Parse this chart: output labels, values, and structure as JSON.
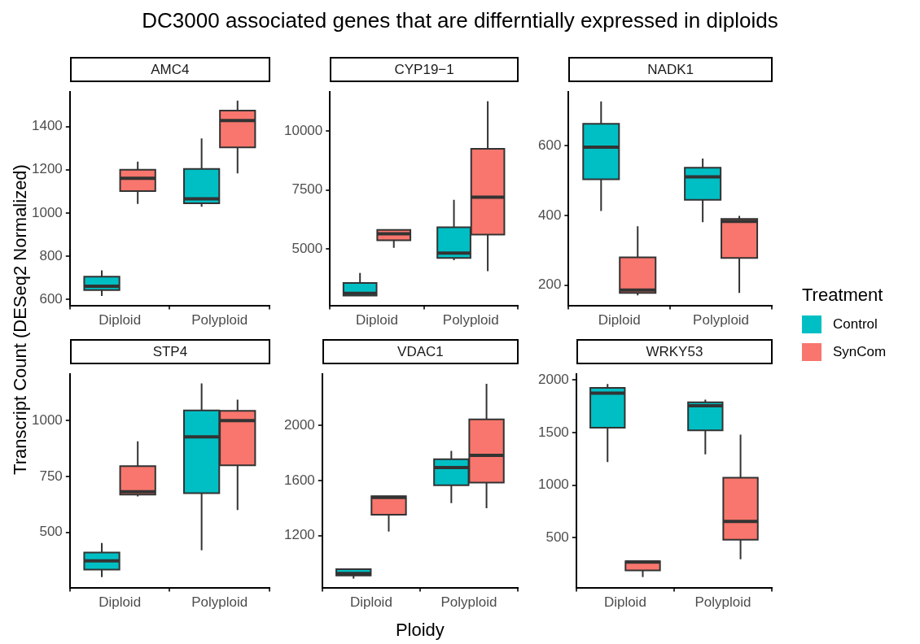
{
  "chart_data": [
    {
      "type": "box",
      "title": "AMC4",
      "annotations": [
        "DC3000 associated genes that are differntially expressed in diploids"
      ],
      "ylabel": "Transcript Count (DESeq2 Normalized)",
      "legend": "right",
      "legend_title": "Treatment",
      "categories": [
        "Diploid",
        "Polyploid"
      ],
      "ylim": [
        572,
        1560
      ],
      "yticks": [
        600,
        800,
        1000,
        1200,
        1400
      ],
      "series": [
        {
          "name": "Control",
          "color": "#00bfc4",
          "boxes": [
            {
              "low": 616,
              "q1": 643,
              "median": 661,
              "q3": 705,
              "high": 734
            },
            {
              "low": 1029,
              "q1": 1045,
              "median": 1066,
              "q3": 1204,
              "high": 1345
            }
          ]
        },
        {
          "name": "SynCom",
          "color": "#f8766d",
          "boxes": [
            {
              "low": 1042,
              "q1": 1101,
              "median": 1161,
              "q3": 1200,
              "high": 1238
            },
            {
              "low": 1183,
              "q1": 1304,
              "median": 1428,
              "q3": 1474,
              "high": 1520
            }
          ]
        }
      ]
    },
    {
      "type": "box",
      "title": "CYP19−1",
      "categories": [
        "Diploid",
        "Polyploid"
      ],
      "ylim": [
        2606,
        11644
      ],
      "yticks": [
        5000,
        7500,
        10000
      ],
      "series": [
        {
          "color": "#00bfc4",
          "boxes": [
            {
              "low": 3020,
              "q1": 3020,
              "median": 3121,
              "q3": 3557,
              "high": 3982
            },
            {
              "low": 4519,
              "q1": 4620,
              "median": 4821,
              "q3": 5917,
              "high": 7081
            }
          ]
        },
        {
          "color": "#f8766d",
          "boxes": [
            {
              "low": 5045,
              "q1": 5369,
              "median": 5637,
              "q3": 5805,
              "high": 5805
            },
            {
              "low": 4060,
              "q1": 5604,
              "median": 7193,
              "q3": 9239,
              "high": 11253
            }
          ]
        }
      ]
    },
    {
      "type": "box",
      "title": "NADK1",
      "categories": [
        "Diploid",
        "Polyploid"
      ],
      "ylim": [
        142,
        754
      ],
      "yticks": [
        200,
        400,
        600
      ],
      "series": [
        {
          "color": "#00bfc4",
          "boxes": [
            {
              "low": 413,
              "q1": 504,
              "median": 596,
              "q3": 663,
              "high": 727
            },
            {
              "low": 381,
              "q1": 445,
              "median": 511,
              "q3": 537,
              "high": 563
            }
          ]
        },
        {
          "color": "#f8766d",
          "boxes": [
            {
              "low": 171,
              "q1": 178,
              "median": 186,
              "q3": 280,
              "high": 369
            },
            {
              "low": 178,
              "q1": 278,
              "median": 383,
              "q3": 390,
              "high": 399
            }
          ]
        }
      ]
    },
    {
      "type": "box",
      "title": "STP4",
      "categories": [
        "Diploid",
        "Polyploid"
      ],
      "ylim": [
        253,
        1208
      ],
      "yticks": [
        500,
        750,
        1000
      ],
      "series": [
        {
          "color": "#00bfc4",
          "boxes": [
            {
              "low": 300,
              "q1": 333,
              "median": 373,
              "q3": 410,
              "high": 453
            },
            {
              "low": 420,
              "q1": 676,
              "median": 928,
              "q3": 1046,
              "high": 1167
            }
          ]
        },
        {
          "color": "#f8766d",
          "boxes": [
            {
              "low": 661,
              "q1": 669,
              "median": 682,
              "q3": 797,
              "high": 908
            },
            {
              "low": 600,
              "q1": 800,
              "median": 1000,
              "q3": 1044,
              "high": 1094
            }
          ]
        }
      ]
    },
    {
      "type": "box",
      "title": "VDAC1",
      "xlabel": "Ploidy",
      "categories": [
        "Diploid",
        "Polyploid"
      ],
      "ylim": [
        822,
        2372
      ],
      "yticks": [
        1200,
        1600,
        2000
      ],
      "series": [
        {
          "color": "#00bfc4",
          "boxes": [
            {
              "low": 887,
              "q1": 910,
              "median": 925,
              "q3": 956,
              "high": 956
            },
            {
              "low": 1436,
              "q1": 1566,
              "median": 1694,
              "q3": 1754,
              "high": 1815
            }
          ]
        },
        {
          "color": "#f8766d",
          "boxes": [
            {
              "low": 1229,
              "q1": 1351,
              "median": 1477,
              "q3": 1485,
              "high": 1485
            },
            {
              "low": 1398,
              "q1": 1585,
              "median": 1782,
              "q3": 2044,
              "high": 2302
            }
          ]
        }
      ]
    },
    {
      "type": "box",
      "title": "WRKY53",
      "categories": [
        "Diploid",
        "Polyploid"
      ],
      "ylim": [
        25,
        2055
      ],
      "yticks": [
        500,
        1000,
        1500,
        2000
      ],
      "series": [
        {
          "color": "#00bfc4",
          "boxes": [
            {
              "low": 1220,
              "q1": 1545,
              "median": 1875,
              "q3": 1925,
              "high": 1962
            },
            {
              "low": 1292,
              "q1": 1520,
              "median": 1755,
              "q3": 1787,
              "high": 1812
            }
          ]
        },
        {
          "color": "#f8766d",
          "boxes": [
            {
              "low": 125,
              "q1": 188,
              "median": 268,
              "q3": 276,
              "high": 276
            },
            {
              "low": 295,
              "q1": 480,
              "median": 655,
              "q3": 1070,
              "high": 1480
            }
          ]
        }
      ]
    }
  ]
}
